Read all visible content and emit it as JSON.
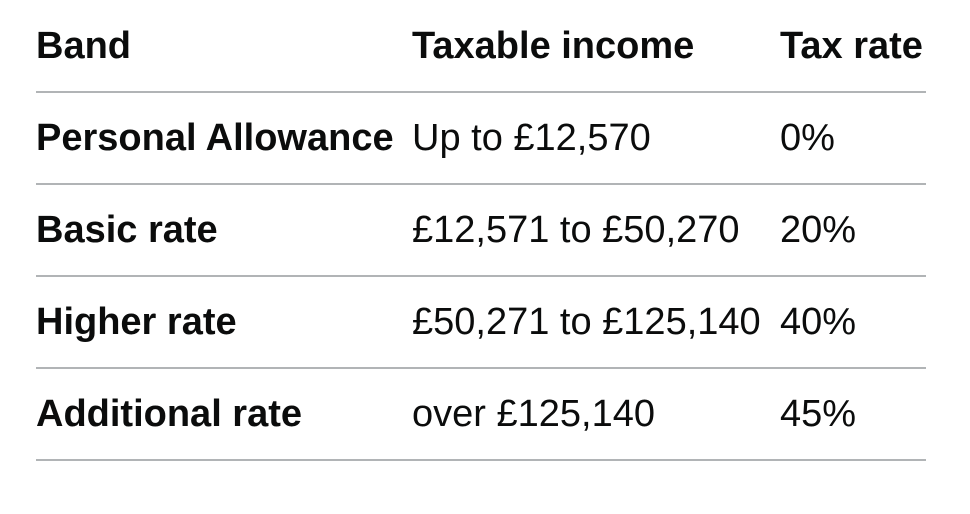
{
  "chart_data": {
    "type": "table",
    "columns": [
      "Band",
      "Taxable income",
      "Tax rate"
    ],
    "rows": [
      [
        "Personal Allowance",
        "Up to £12,570",
        "0%"
      ],
      [
        "Basic rate",
        "£12,571 to £50,270",
        "20%"
      ],
      [
        "Higher rate",
        "£50,271 to £125,140",
        "40%"
      ],
      [
        "Additional rate",
        "over £125,140",
        "45%"
      ]
    ],
    "tax_rates_numeric_percent": [
      0,
      20,
      40,
      45
    ],
    "band_thresholds_gbp": [
      12570,
      50270,
      125140
    ],
    "layout": {
      "header_bold": true,
      "first_column_bold": true,
      "divider_lines": "horizontal only, below header and below each row"
    }
  },
  "colors": {
    "text": "#0b0c0c",
    "divider": "#b1b4b6",
    "background": "#ffffff"
  }
}
